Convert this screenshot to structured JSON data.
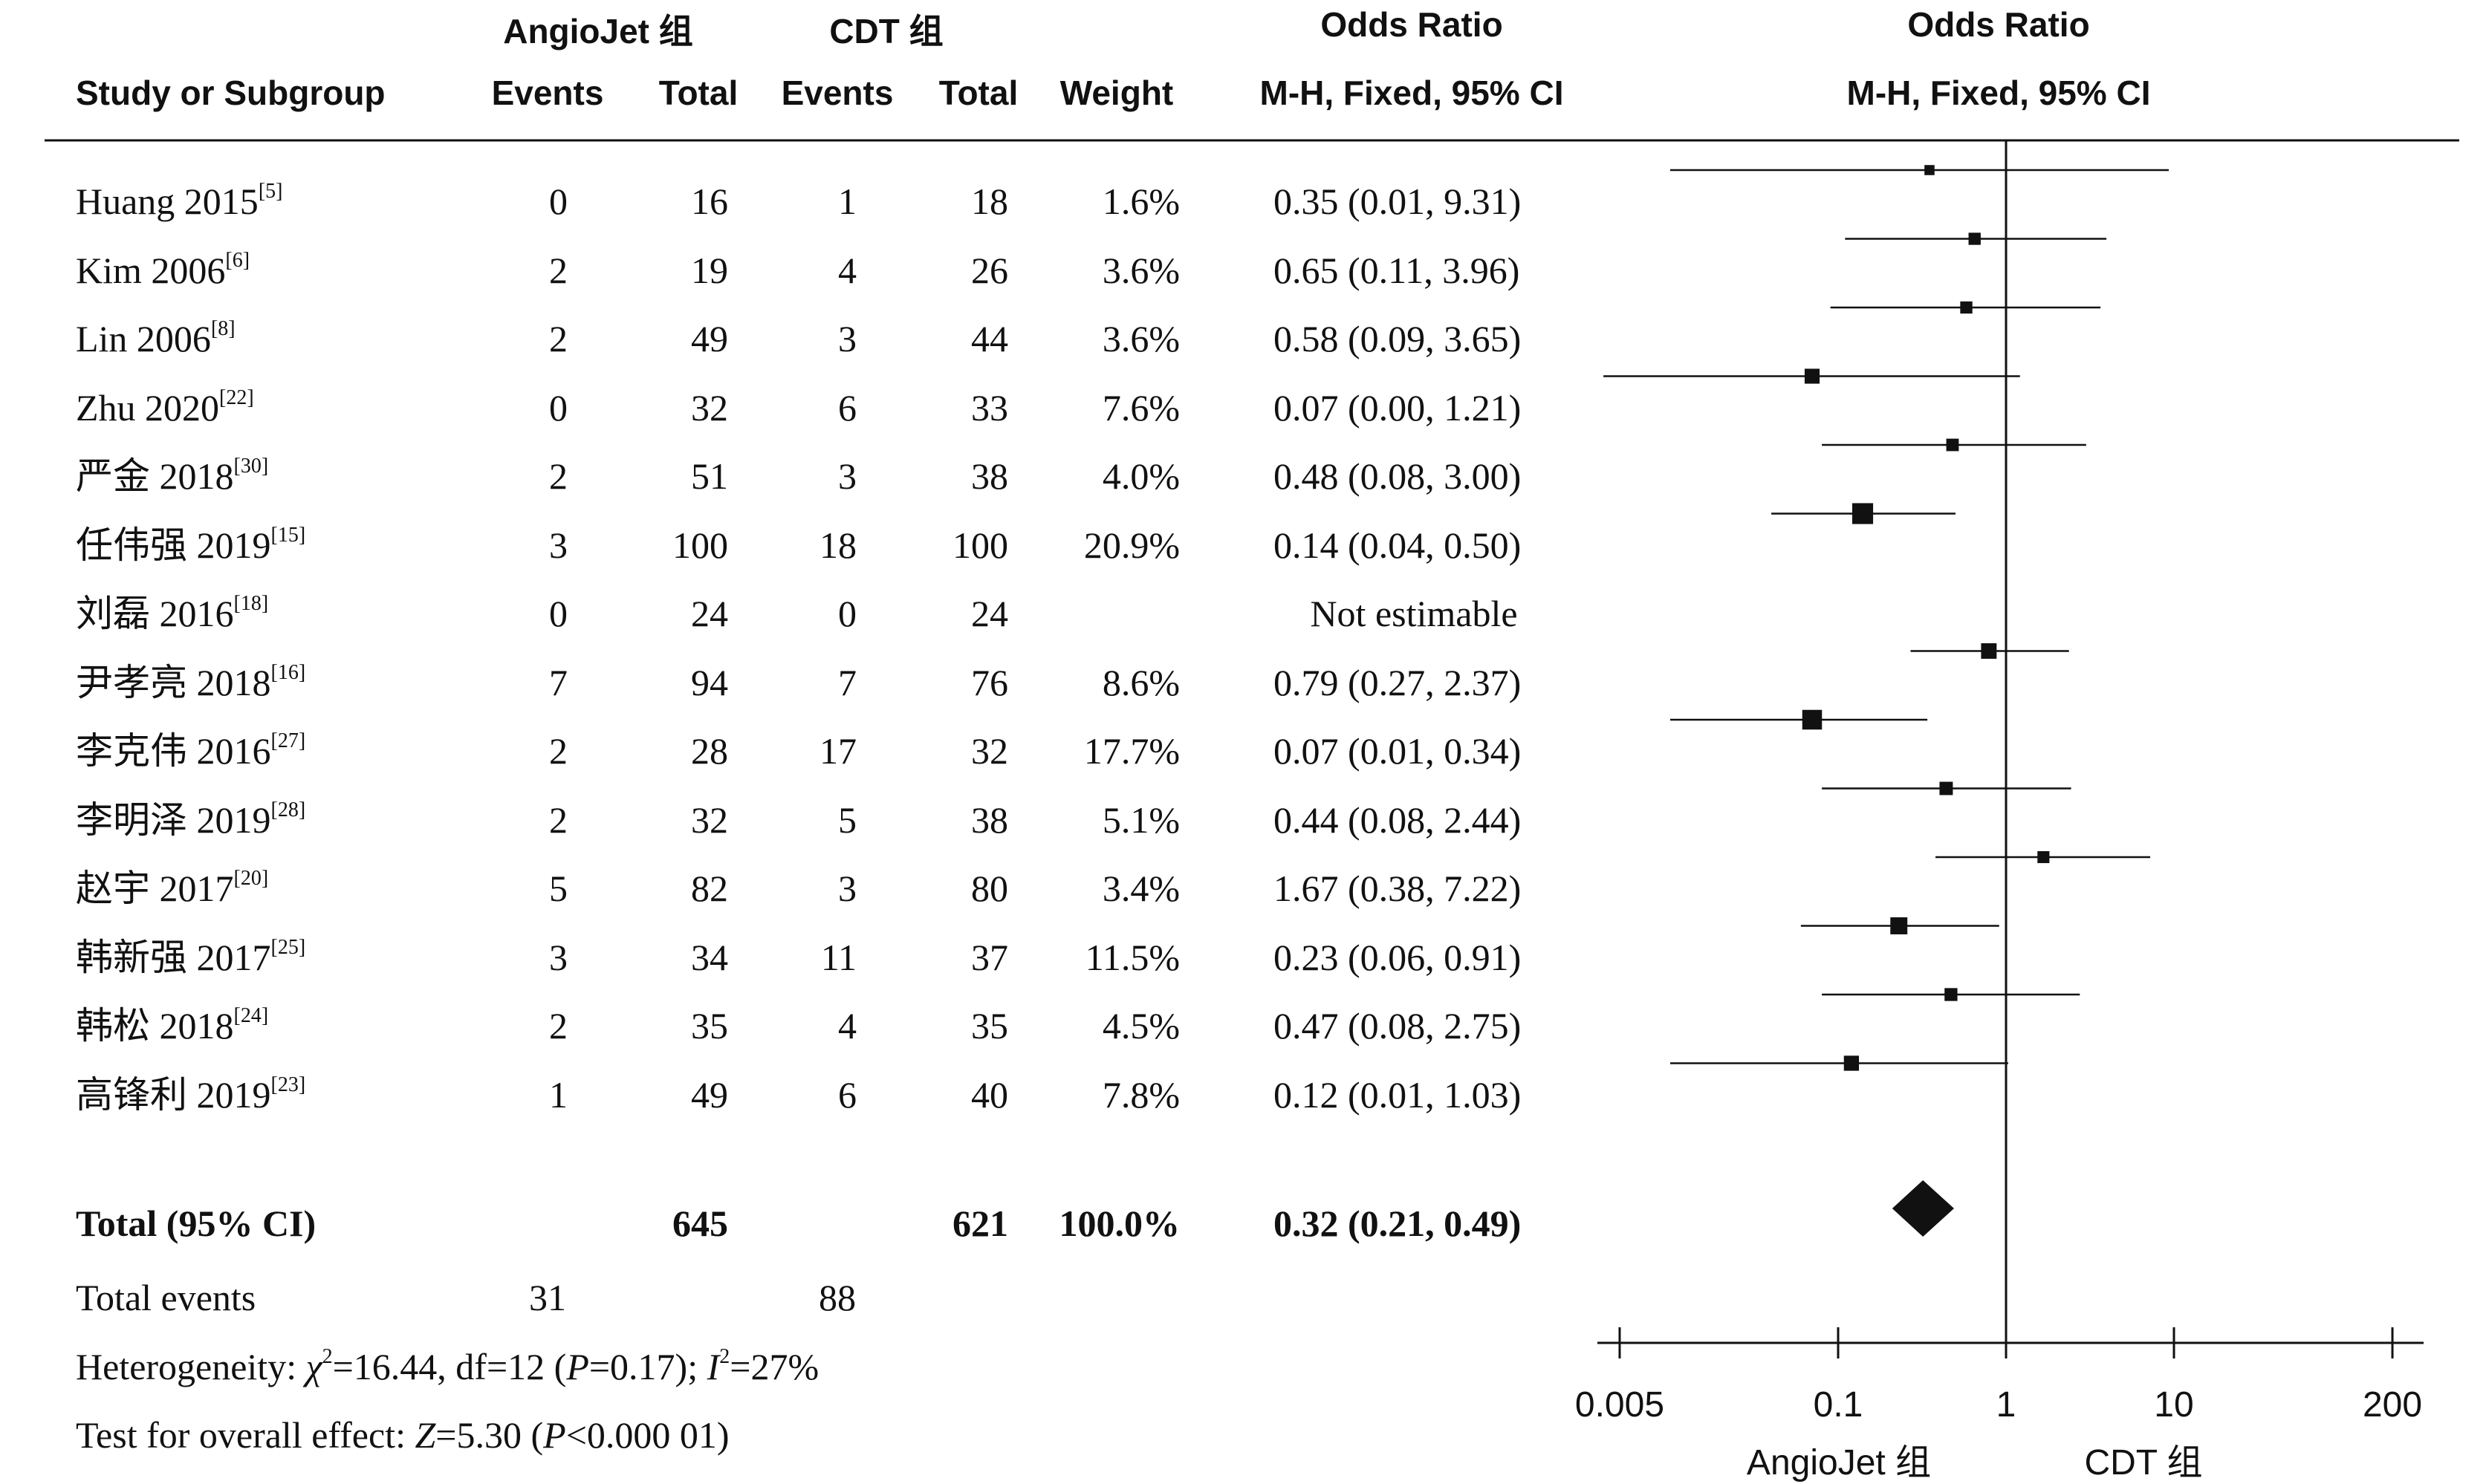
{
  "headers": {
    "group1": "AngioJet 组",
    "group2": "CDT 组",
    "or_label": "Odds Ratio",
    "plot_or_label": "Odds Ratio",
    "study": "Study or Subgroup",
    "events1": "Events",
    "total1": "Total",
    "events2": "Events",
    "total2": "Total",
    "weight": "Weight",
    "method": "M-H, Fixed, 95% CI",
    "plot_method": "M-H, Fixed, 95% CI"
  },
  "chart_data": {
    "type": "forest",
    "x_scale": "log",
    "xlim": [
      0.005,
      200
    ],
    "x_ticks": [
      0.005,
      0.1,
      1,
      10,
      200
    ],
    "x_tick_labels": [
      "0.005",
      "0.1",
      "1",
      "10",
      "200"
    ],
    "favours_left": "AngioJet 组",
    "favours_right": "CDT 组",
    "studies": [
      {
        "name": "Huang 2015",
        "ref": "[5]",
        "e1": "0",
        "t1": "16",
        "e2": "1",
        "t2": "18",
        "weight": "1.6%",
        "ci_text": "0.35 (0.01, 9.31)",
        "or": 0.35,
        "lo": 0.01,
        "hi": 9.31,
        "w": 1.6
      },
      {
        "name": "Kim 2006",
        "ref": "[6]",
        "e1": "2",
        "t1": "19",
        "e2": "4",
        "t2": "26",
        "weight": "3.6%",
        "ci_text": "0.65 (0.11, 3.96)",
        "or": 0.65,
        "lo": 0.11,
        "hi": 3.96,
        "w": 3.6
      },
      {
        "name": "Lin 2006",
        "ref": "[8]",
        "e1": "2",
        "t1": "49",
        "e2": "3",
        "t2": "44",
        "weight": "3.6%",
        "ci_text": "0.58 (0.09, 3.65)",
        "or": 0.58,
        "lo": 0.09,
        "hi": 3.65,
        "w": 3.6
      },
      {
        "name": "Zhu 2020",
        "ref": "[22]",
        "e1": "0",
        "t1": "32",
        "e2": "6",
        "t2": "33",
        "weight": "7.6%",
        "ci_text": "0.07 (0.00, 1.21)",
        "or": 0.07,
        "lo": 0.004,
        "hi": 1.21,
        "w": 7.6
      },
      {
        "name": "严金 2018",
        "ref": "[30]",
        "e1": "2",
        "t1": "51",
        "e2": "3",
        "t2": "38",
        "weight": "4.0%",
        "ci_text": "0.48 (0.08, 3.00)",
        "or": 0.48,
        "lo": 0.08,
        "hi": 3.0,
        "w": 4.0
      },
      {
        "name": "任伟强 2019",
        "ref": "[15]",
        "e1": "3",
        "t1": "100",
        "e2": "18",
        "t2": "100",
        "weight": "20.9%",
        "ci_text": "0.14 (0.04, 0.50)",
        "or": 0.14,
        "lo": 0.04,
        "hi": 0.5,
        "w": 20.9
      },
      {
        "name": "刘磊 2016",
        "ref": "[18]",
        "e1": "0",
        "t1": "24",
        "e2": "0",
        "t2": "24",
        "weight": "",
        "ci_text": "Not estimable",
        "or": null,
        "lo": null,
        "hi": null,
        "w": 0
      },
      {
        "name": "尹孝亮 2018",
        "ref": "[16]",
        "e1": "7",
        "t1": "94",
        "e2": "7",
        "t2": "76",
        "weight": "8.6%",
        "ci_text": "0.79 (0.27, 2.37)",
        "or": 0.79,
        "lo": 0.27,
        "hi": 2.37,
        "w": 8.6
      },
      {
        "name": "李克伟 2016",
        "ref": "[27]",
        "e1": "2",
        "t1": "28",
        "e2": "17",
        "t2": "32",
        "weight": "17.7%",
        "ci_text": "0.07 (0.01, 0.34)",
        "or": 0.07,
        "lo": 0.01,
        "hi": 0.34,
        "w": 17.7
      },
      {
        "name": "李明泽 2019",
        "ref": "[28]",
        "e1": "2",
        "t1": "32",
        "e2": "5",
        "t2": "38",
        "weight": "5.1%",
        "ci_text": "0.44 (0.08, 2.44)",
        "or": 0.44,
        "lo": 0.08,
        "hi": 2.44,
        "w": 5.1
      },
      {
        "name": "赵宇 2017",
        "ref": "[20]",
        "e1": "5",
        "t1": "82",
        "e2": "3",
        "t2": "80",
        "weight": "3.4%",
        "ci_text": "1.67 (0.38, 7.22)",
        "or": 1.67,
        "lo": 0.38,
        "hi": 7.22,
        "w": 3.4
      },
      {
        "name": "韩新强 2017",
        "ref": "[25]",
        "e1": "3",
        "t1": "34",
        "e2": "11",
        "t2": "37",
        "weight": "11.5%",
        "ci_text": "0.23 (0.06, 0.91)",
        "or": 0.23,
        "lo": 0.06,
        "hi": 0.91,
        "w": 11.5
      },
      {
        "name": "韩松 2018",
        "ref": "[24]",
        "e1": "2",
        "t1": "35",
        "e2": "4",
        "t2": "35",
        "weight": "4.5%",
        "ci_text": "0.47 (0.08, 2.75)",
        "or": 0.47,
        "lo": 0.08,
        "hi": 2.75,
        "w": 4.5
      },
      {
        "name": "高锋利 2019",
        "ref": "[23]",
        "e1": "1",
        "t1": "49",
        "e2": "6",
        "t2": "40",
        "weight": "7.8%",
        "ci_text": "0.12 (0.01, 1.03)",
        "or": 0.12,
        "lo": 0.01,
        "hi": 1.03,
        "w": 7.8
      }
    ],
    "total": {
      "label": "Total (95% CI)",
      "t1": "645",
      "t2": "621",
      "weight": "100.0%",
      "ci_text": "0.32 (0.21, 0.49)",
      "or": 0.32,
      "lo": 0.21,
      "hi": 0.49
    }
  },
  "summary": {
    "events_label": "Total events",
    "events1": "31",
    "events2": "88",
    "het_prefix": "Heterogeneity: ",
    "het_chi": "χ",
    "het_chi_sup": "2",
    "het_mid1": "=16.44, df=12 (",
    "het_p": "P",
    "het_mid2": "=0.17); ",
    "het_i": "I",
    "het_i_sup": "2",
    "het_end": "=27%",
    "test_prefix": "Test for overall effect: ",
    "test_z": "Z",
    "test_mid": "=5.30 (",
    "test_p": "P",
    "test_end": "<0.000 01)"
  }
}
